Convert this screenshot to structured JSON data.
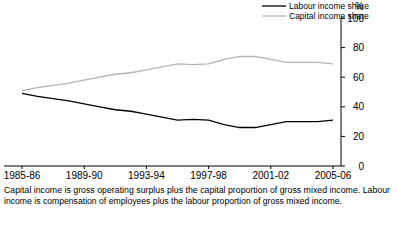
{
  "chart_data": {
    "type": "line",
    "y_label": "%",
    "categories": [
      "1985-86",
      null,
      null,
      null,
      "1989-90",
      null,
      null,
      null,
      "1993-94",
      null,
      null,
      null,
      "1997-98",
      null,
      null,
      null,
      "2001-02",
      null,
      null,
      null,
      "2005-06"
    ],
    "series": [
      {
        "name": "Labour income share",
        "color": "#000000",
        "values": [
          49,
          47,
          45.5,
          44,
          42,
          40,
          38,
          37,
          35,
          33,
          31,
          31.5,
          31,
          28,
          26,
          26,
          28,
          30,
          30,
          30,
          31
        ]
      },
      {
        "name": "Capital income share",
        "color": "#b3b3b3",
        "values": [
          51,
          53,
          54.5,
          56,
          58,
          60,
          62,
          63,
          65,
          67,
          69,
          68.5,
          69,
          72,
          74,
          74,
          72,
          70,
          70,
          70,
          69
        ]
      }
    ],
    "ylim": [
      0,
      100
    ],
    "yticks": [
      0,
      20,
      40,
      60,
      80,
      100
    ],
    "grid": false,
    "legend": "top-right",
    "annotations": [
      "Capital income is gross operating surplus plus the capital proportion of gross mixed income. Labour",
      "income is compensation of employees plus the labour proportion of gross mixed income."
    ]
  }
}
